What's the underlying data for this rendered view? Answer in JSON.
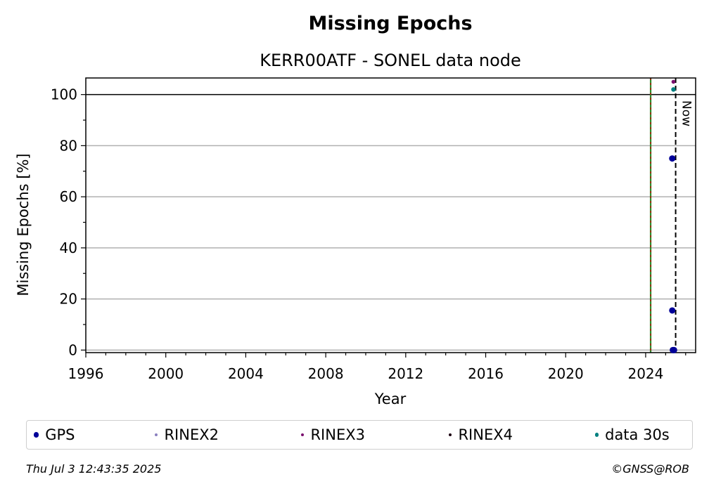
{
  "chart_data": {
    "type": "scatter",
    "title": "Missing Epochs",
    "subtitle": "KERR00ATF - SONEL data node",
    "xlabel": "Year",
    "ylabel": "Missing Epochs [%]",
    "xlim": [
      1996,
      2026.5
    ],
    "ylim": [
      -1,
      106.5
    ],
    "xticks": [
      1996,
      2000,
      2004,
      2008,
      2012,
      2016,
      2020,
      2024
    ],
    "yticks": [
      0,
      20,
      40,
      60,
      80,
      100
    ],
    "grid": true,
    "legend_position": "bottom",
    "now_label": "Now",
    "now_x": 2025.5,
    "reference_line_x": 2024.25,
    "reference_line_colors": [
      "#2e8b2e",
      "#cc0000"
    ],
    "hundred_line_y": 100,
    "series": [
      {
        "name": "GPS",
        "color": "#000099",
        "marker_size": 4.5,
        "x": [
          2025.33,
          2025.33,
          2025.36,
          2025.39,
          2025.42
        ],
        "y": [
          75,
          15.5,
          0,
          0,
          0
        ]
      },
      {
        "name": "RINEX2",
        "color": "#8a7fbf",
        "marker_size": 2.8,
        "x": [],
        "y": []
      },
      {
        "name": "RINEX3",
        "color": "#7a0f6e",
        "marker_size": 2.8,
        "x": [
          2025.39
        ],
        "y": [
          105
        ]
      },
      {
        "name": "RINEX4",
        "color": "#1a0010",
        "marker_size": 2.8,
        "x": [],
        "y": []
      },
      {
        "name": "data 30s",
        "color": "#008080",
        "marker_size": 3.2,
        "x": [
          2025.39
        ],
        "y": [
          102
        ]
      }
    ]
  },
  "footer": {
    "timestamp": "Thu Jul  3 12:43:35 2025",
    "credit": "©GNSS@ROB"
  }
}
